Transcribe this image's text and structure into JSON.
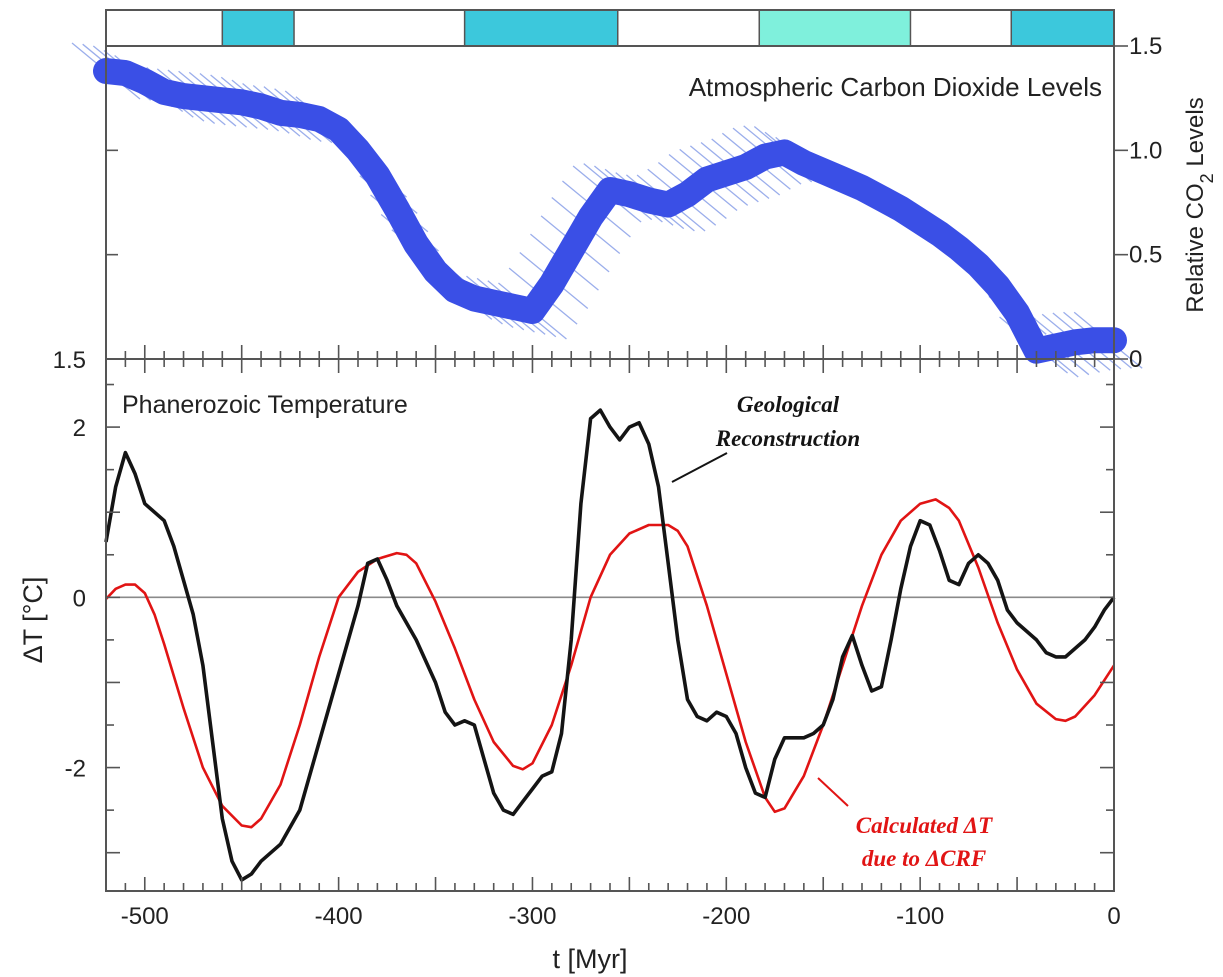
{
  "chart_data": [
    {
      "type": "bar",
      "panel": "glaciation-bands",
      "color": "#3cc8dc",
      "highlight_color": "#7ff0dc",
      "intervals": [
        {
          "start": -460,
          "end": -423
        },
        {
          "start": -335,
          "end": -256
        },
        {
          "start": -183,
          "end": -105,
          "highlight": true
        },
        {
          "start": -53,
          "end": 0
        }
      ]
    },
    {
      "type": "line",
      "title": "Atmospheric Carbon Dioxide Levels",
      "ylabel": "Relative CO",
      "ylabel_sub": "2",
      "ylabel_tail": " Levels",
      "xlim": [
        -520,
        0
      ],
      "ylim": [
        0,
        1.5
      ],
      "yticks": [
        0,
        0.5,
        1.0,
        1.5
      ],
      "ytick_labels": [
        "0",
        "0.5",
        "1.0",
        "1.5"
      ],
      "left_corner_label": "1.5",
      "grid": false,
      "band_color": "#8aa0e8",
      "line_color": "#3a4fe6",
      "series": [
        {
          "x": [
            -520,
            -510,
            -500,
            -490,
            -480,
            -470,
            -460,
            -450,
            -440,
            -430,
            -420,
            -410,
            -400,
            -390,
            -380,
            -370,
            -360,
            -350,
            -340,
            -330,
            -320,
            -310,
            -300,
            -290,
            -280,
            -270,
            -260,
            -250,
            -240,
            -230,
            -220,
            -210,
            -200,
            -190,
            -180,
            -170,
            -160,
            -150,
            -140,
            -130,
            -120,
            -110,
            -100,
            -90,
            -80,
            -70,
            -60,
            -50,
            -40,
            -30,
            -20,
            -10,
            0
          ],
          "y": [
            1.38,
            1.37,
            1.33,
            1.28,
            1.26,
            1.25,
            1.24,
            1.23,
            1.21,
            1.18,
            1.17,
            1.15,
            1.1,
            1.0,
            0.88,
            0.72,
            0.55,
            0.42,
            0.33,
            0.29,
            0.27,
            0.25,
            0.23,
            0.36,
            0.52,
            0.68,
            0.81,
            0.79,
            0.76,
            0.74,
            0.79,
            0.86,
            0.89,
            0.92,
            0.97,
            0.99,
            0.94,
            0.9,
            0.86,
            0.82,
            0.77,
            0.72,
            0.66,
            0.6,
            0.53,
            0.45,
            0.35,
            0.22,
            0.04,
            0.06,
            0.08,
            0.09,
            0.09
          ]
        }
      ]
    },
    {
      "type": "line",
      "title": "Phanerozoic Temperature",
      "xlabel": "t [Myr]",
      "ylabel": "ΔT [°C]",
      "xlim": [
        -520,
        0
      ],
      "ylim": [
        -3.45,
        2.8
      ],
      "xticks": [
        -500,
        -400,
        -300,
        -200,
        -100,
        0
      ],
      "xtick_labels": [
        "-500",
        "-400",
        "-300",
        "-200",
        "-100",
        "0"
      ],
      "yticks": [
        -2,
        0,
        2
      ],
      "ytick_labels": [
        "-2",
        "0",
        "2"
      ],
      "grid": false,
      "zero_line": true,
      "series": [
        {
          "role": "geological",
          "color": "#141414",
          "x": [
            -520,
            -515,
            -510,
            -505,
            -500,
            -495,
            -490,
            -485,
            -480,
            -475,
            -470,
            -465,
            -460,
            -455,
            -450,
            -445,
            -440,
            -430,
            -420,
            -410,
            -400,
            -390,
            -385,
            -380,
            -375,
            -370,
            -360,
            -350,
            -345,
            -340,
            -335,
            -330,
            -325,
            -320,
            -315,
            -310,
            -305,
            -300,
            -295,
            -290,
            -285,
            -280,
            -275,
            -270,
            -265,
            -260,
            -255,
            -250,
            -245,
            -240,
            -235,
            -230,
            -225,
            -220,
            -215,
            -210,
            -205,
            -200,
            -195,
            -190,
            -185,
            -180,
            -175,
            -170,
            -165,
            -160,
            -155,
            -150,
            -145,
            -140,
            -135,
            -130,
            -125,
            -120,
            -115,
            -110,
            -105,
            -100,
            -95,
            -90,
            -85,
            -80,
            -75,
            -70,
            -65,
            -60,
            -55,
            -50,
            -45,
            -40,
            -35,
            -30,
            -25,
            -20,
            -15,
            -10,
            -5,
            0
          ],
          "y": [
            0.65,
            1.3,
            1.7,
            1.45,
            1.1,
            1.0,
            0.9,
            0.6,
            0.2,
            -0.2,
            -0.8,
            -1.7,
            -2.6,
            -3.1,
            -3.32,
            -3.25,
            -3.1,
            -2.9,
            -2.5,
            -1.7,
            -0.9,
            -0.1,
            0.4,
            0.45,
            0.2,
            -0.1,
            -0.5,
            -1.0,
            -1.35,
            -1.5,
            -1.45,
            -1.5,
            -1.9,
            -2.3,
            -2.5,
            -2.55,
            -2.4,
            -2.25,
            -2.1,
            -2.05,
            -1.6,
            -0.5,
            1.1,
            2.1,
            2.2,
            2.0,
            1.85,
            2.0,
            2.05,
            1.8,
            1.3,
            0.4,
            -0.5,
            -1.2,
            -1.4,
            -1.45,
            -1.35,
            -1.4,
            -1.6,
            -2.0,
            -2.3,
            -2.35,
            -1.9,
            -1.65,
            -1.65,
            -1.65,
            -1.6,
            -1.5,
            -1.2,
            -0.7,
            -0.45,
            -0.8,
            -1.1,
            -1.05,
            -0.5,
            0.1,
            0.6,
            0.9,
            0.85,
            0.55,
            0.2,
            0.15,
            0.4,
            0.5,
            0.4,
            0.2,
            -0.15,
            -0.3,
            -0.4,
            -0.5,
            -0.65,
            -0.7,
            -0.7,
            -0.6,
            -0.5,
            -0.35,
            -0.15,
            0.0
          ]
        },
        {
          "role": "calculated",
          "color": "#e11414",
          "x": [
            -520,
            -515,
            -510,
            -505,
            -500,
            -495,
            -490,
            -480,
            -470,
            -460,
            -450,
            -445,
            -440,
            -430,
            -420,
            -410,
            -400,
            -390,
            -380,
            -370,
            -365,
            -360,
            -350,
            -340,
            -330,
            -320,
            -310,
            -305,
            -300,
            -290,
            -280,
            -270,
            -260,
            -250,
            -240,
            -230,
            -225,
            -220,
            -210,
            -200,
            -190,
            -180,
            -175,
            -170,
            -160,
            -150,
            -140,
            -130,
            -120,
            -110,
            -100,
            -92,
            -85,
            -80,
            -70,
            -60,
            -50,
            -40,
            -30,
            -25,
            -20,
            -10,
            0
          ],
          "y": [
            -0.02,
            0.1,
            0.15,
            0.15,
            0.05,
            -0.2,
            -0.55,
            -1.3,
            -2.0,
            -2.45,
            -2.68,
            -2.7,
            -2.6,
            -2.2,
            -1.5,
            -0.7,
            0.0,
            0.3,
            0.45,
            0.52,
            0.5,
            0.4,
            -0.05,
            -0.6,
            -1.2,
            -1.7,
            -1.98,
            -2.02,
            -1.95,
            -1.5,
            -0.8,
            0.0,
            0.5,
            0.75,
            0.85,
            0.85,
            0.78,
            0.6,
            -0.1,
            -0.9,
            -1.7,
            -2.35,
            -2.52,
            -2.48,
            -2.1,
            -1.5,
            -0.8,
            -0.1,
            0.5,
            0.9,
            1.1,
            1.15,
            1.05,
            0.9,
            0.35,
            -0.3,
            -0.85,
            -1.25,
            -1.43,
            -1.45,
            -1.4,
            -1.15,
            -0.8
          ]
        }
      ],
      "annotations": [
        {
          "line1": "Geological",
          "line2": "Reconstruction",
          "color": "#141414"
        },
        {
          "line1": "Calculated ΔT",
          "line2": "due to ΔCRF",
          "color": "#e11414"
        }
      ]
    }
  ]
}
